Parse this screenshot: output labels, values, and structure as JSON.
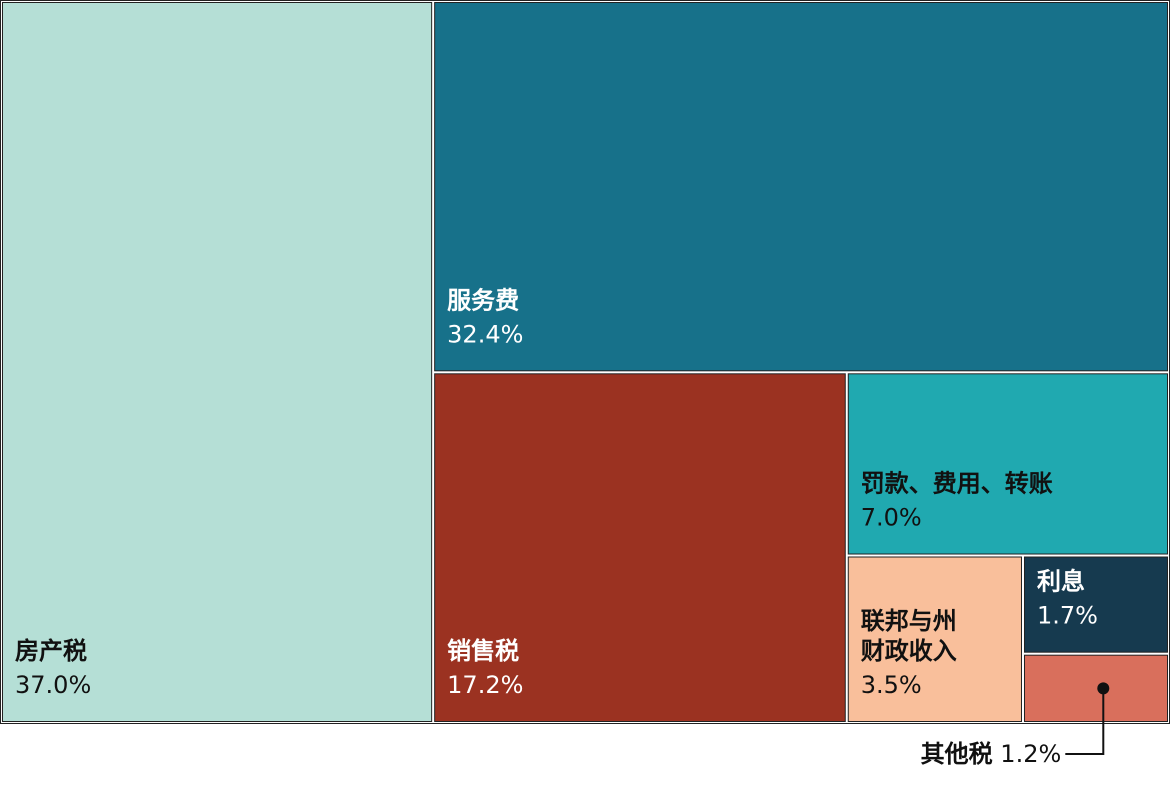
{
  "chart_data": {
    "type": "treemap",
    "categories": [
      "房产税",
      "服务费",
      "销售税",
      "罚款、费用、转账",
      "联邦与州财政收入",
      "利息",
      "其他税"
    ],
    "values": [
      37.0,
      32.4,
      17.2,
      7.0,
      3.5,
      1.7,
      1.2
    ],
    "value_labels": [
      "37.0%",
      "32.4%",
      "17.2%",
      "7.0%",
      "3.5%",
      "1.7%",
      "1.2%"
    ],
    "colors": [
      "#b5dfd6",
      "#17718a",
      "#9b3221",
      "#20a9b0",
      "#f9bf9b",
      "#163a4f",
      "#d96f5c"
    ]
  }
}
